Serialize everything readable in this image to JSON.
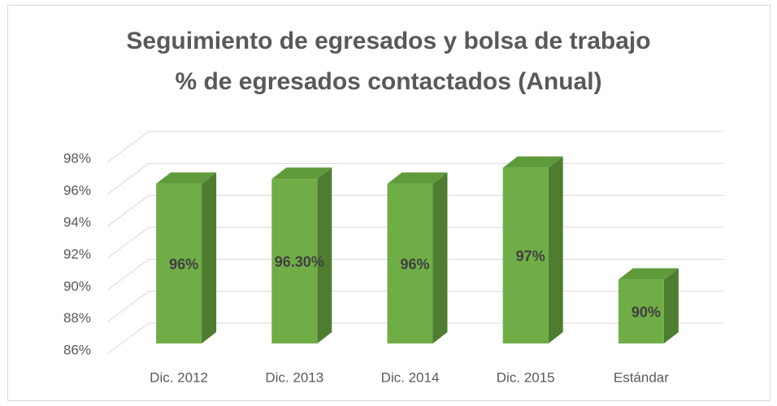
{
  "chart_data": {
    "type": "bar3d",
    "title": "Seguimiento de egresados y bolsa de trabajo",
    "subtitle": "% de egresados contactados (Anual)",
    "categories": [
      "Dic. 2012",
      "Dic. 2013",
      "Dic. 2014",
      "Dic. 2015",
      "Estándar"
    ],
    "values": [
      96,
      96.3,
      96,
      97,
      90
    ],
    "value_labels": [
      "96%",
      "96.30%",
      "96%",
      "97%",
      "90%"
    ],
    "color": "#70ad47",
    "ylim": [
      86,
      98
    ],
    "yticks": [
      {
        "value": 86,
        "label": "86%"
      },
      {
        "value": 88,
        "label": "88%"
      },
      {
        "value": 90,
        "label": "90%"
      },
      {
        "value": 92,
        "label": "92%"
      },
      {
        "value": 94,
        "label": "94%"
      },
      {
        "value": 96,
        "label": "96%"
      },
      {
        "value": 98,
        "label": "98%"
      }
    ],
    "grid": true
  }
}
